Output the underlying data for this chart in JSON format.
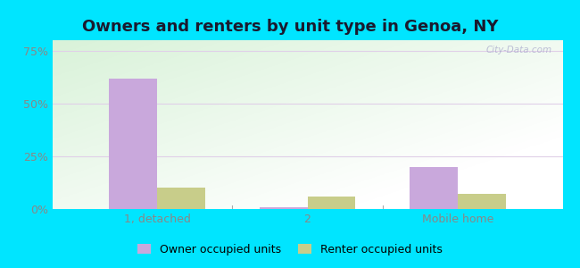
{
  "title": "Owners and renters by unit type in Genoa, NY",
  "categories": [
    "1, detached",
    "2",
    "Mobile home"
  ],
  "owner_values": [
    62,
    1,
    20
  ],
  "renter_values": [
    10,
    6,
    7
  ],
  "owner_color": "#c9a8dc",
  "renter_color": "#c8cd8a",
  "yticks": [
    0,
    25,
    50,
    75
  ],
  "ylim": [
    0,
    80
  ],
  "background_outer": "#00e5ff",
  "watermark": "City-Data.com",
  "legend_owner": "Owner occupied units",
  "legend_renter": "Renter occupied units",
  "bar_width": 0.32,
  "title_fontsize": 13,
  "grid_color": "#e0d0e8",
  "tick_color": "#888888",
  "separator_color": "#aaaaaa"
}
